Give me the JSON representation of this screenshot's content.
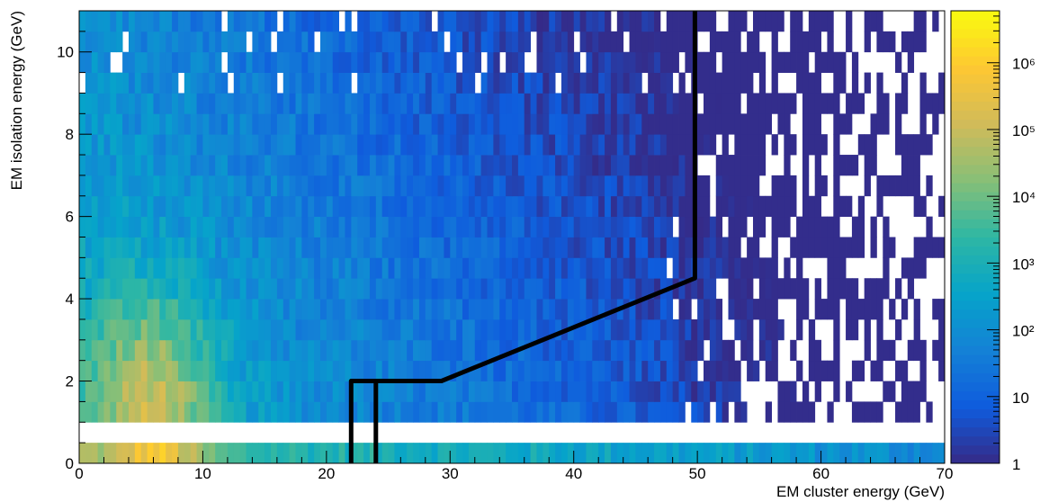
{
  "chart_data": {
    "type": "heatmap",
    "xlabel": "EM cluster energy (GeV)",
    "ylabel": "EM isolation energy (GeV)",
    "xlim": [
      0,
      70
    ],
    "ylim": [
      0,
      11
    ],
    "x_ticks": [
      "0",
      "10",
      "20",
      "30",
      "40",
      "50",
      "60",
      "70"
    ],
    "y_ticks": [
      "0",
      "2",
      "4",
      "6",
      "8",
      "10"
    ],
    "z_scale": "log",
    "zlim": [
      1,
      6000000
    ],
    "z_ticks": [
      "1",
      "10",
      "10²",
      "10³",
      "10⁴",
      "10⁵",
      "10⁶"
    ],
    "bin_width_x": 0.5,
    "bin_height_y": 0.5,
    "empty_band_y": [
      0.5,
      1.0
    ],
    "description": [
      {
        "region": "low isolation row (y 0-0.5)",
        "x_range": [
          3,
          12
        ],
        "approx_counts": "1e5-1e6"
      },
      {
        "region": "low isolation row (y 0-0.5)",
        "x_range": [
          12,
          45
        ],
        "approx_counts": "1e3-1e4"
      },
      {
        "region": "y 1-4",
        "x_range": [
          3,
          12
        ],
        "approx_counts": "1e4-1e5"
      },
      {
        "region": "y 4-11",
        "x_range": [
          0,
          40
        ],
        "approx_counts": "1e2-1e3"
      },
      {
        "region": "y 1-11",
        "x_range": [
          50,
          70
        ],
        "approx_counts": "1-1e2, sparse"
      }
    ],
    "selection_cut": {
      "points": [
        [
          22,
          0
        ],
        [
          22,
          2
        ],
        [
          29.3,
          2
        ],
        [
          49.8,
          4.5
        ],
        [
          49.8,
          11
        ]
      ],
      "points_left_branch": [
        [
          24,
          0
        ],
        [
          24,
          2
        ]
      ]
    },
    "palette": [
      "#352a87",
      "#0f5cdd",
      "#1481d6",
      "#06a4ca",
      "#2eb7a4",
      "#87bf77",
      "#d1bb59",
      "#fec832",
      "#f9fb0e"
    ]
  }
}
